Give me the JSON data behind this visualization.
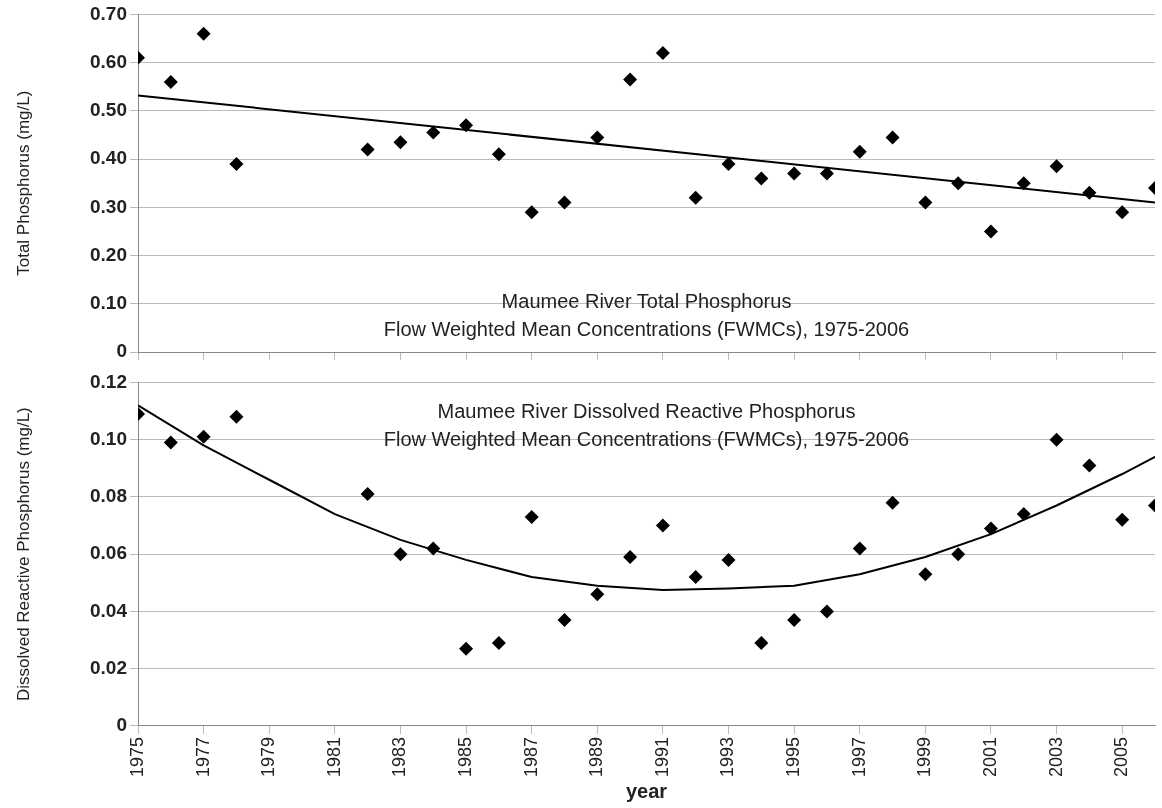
{
  "chart_data": [
    {
      "type": "scatter",
      "ylabel": "Total Phosphorus (mg/L)",
      "annotations": [
        "Maumee River Total Phosphorus",
        "Flow Weighted Mean Concentrations (FWMCs), 1975-2006"
      ],
      "xlim": [
        1975,
        2006
      ],
      "xticks": [
        1975,
        1977,
        1979,
        1981,
        1983,
        1985,
        1987,
        1989,
        1991,
        1993,
        1995,
        1997,
        1999,
        2001,
        2003,
        2005
      ],
      "ylim": [
        0,
        0.7
      ],
      "yticks": [
        {
          "value": 0,
          "label": "0"
        },
        {
          "value": 0.1,
          "label": "0.10"
        },
        {
          "value": 0.2,
          "label": "0.20"
        },
        {
          "value": 0.3,
          "label": "0.30"
        },
        {
          "value": 0.4,
          "label": "0.40"
        },
        {
          "value": 0.5,
          "label": "0.50"
        },
        {
          "value": 0.6,
          "label": "0.60"
        },
        {
          "value": 0.7,
          "label": "0.70"
        }
      ],
      "tick_labels": "y",
      "grid": "y",
      "legend": false,
      "series": [
        {
          "type": "scatter",
          "marker": "diamond",
          "color": "#000000",
          "x": [
            1975,
            1976,
            1977,
            1978,
            1982,
            1983,
            1984,
            1985,
            1986,
            1987,
            1988,
            1989,
            1990,
            1991,
            1992,
            1993,
            1994,
            1995,
            1996,
            1997,
            1998,
            1999,
            2000,
            2001,
            2002,
            2003,
            2004,
            2005,
            2006
          ],
          "values": [
            0.61,
            0.56,
            0.66,
            0.39,
            0.42,
            0.435,
            0.455,
            0.47,
            0.41,
            0.29,
            0.31,
            0.445,
            0.565,
            0.62,
            0.32,
            0.39,
            0.36,
            0.37,
            0.37,
            0.415,
            0.445,
            0.31,
            0.35,
            0.25,
            0.35,
            0.385,
            0.33,
            0.29,
            0.34
          ]
        },
        {
          "type": "line",
          "color": "#000000",
          "x": [
            1975,
            2006
          ],
          "values": [
            0.532,
            0.31
          ]
        }
      ]
    },
    {
      "type": "scatter",
      "ylabel": "Dissolved Reactive Phosphorus (mg/L)",
      "xlabel": "year",
      "annotations": [
        "Maumee River Dissolved Reactive Phosphorus",
        "Flow Weighted Mean Concentrations (FWMCs), 1975-2006"
      ],
      "xlim": [
        1975,
        2006
      ],
      "xticks": [
        1975,
        1977,
        1979,
        1981,
        1983,
        1985,
        1987,
        1989,
        1991,
        1993,
        1995,
        1997,
        1999,
        2001,
        2003,
        2005
      ],
      "ylim": [
        0,
        0.12
      ],
      "yticks": [
        {
          "value": 0,
          "label": "0"
        },
        {
          "value": 0.02,
          "label": "0.02"
        },
        {
          "value": 0.04,
          "label": "0.04"
        },
        {
          "value": 0.06,
          "label": "0.06"
        },
        {
          "value": 0.08,
          "label": "0.08"
        },
        {
          "value": 0.1,
          "label": "0.10"
        },
        {
          "value": 0.12,
          "label": "0.12"
        }
      ],
      "grid": "y",
      "legend": false,
      "series": [
        {
          "type": "scatter",
          "marker": "diamond",
          "color": "#000000",
          "x": [
            1975,
            1976,
            1977,
            1978,
            1982,
            1983,
            1984,
            1985,
            1986,
            1987,
            1988,
            1989,
            1990,
            1991,
            1992,
            1993,
            1994,
            1995,
            1996,
            1997,
            1998,
            1999,
            2000,
            2001,
            2002,
            2003,
            2004,
            2005,
            2006
          ],
          "values": [
            0.109,
            0.099,
            0.101,
            0.108,
            0.081,
            0.06,
            0.062,
            0.027,
            0.029,
            0.073,
            0.037,
            0.046,
            0.059,
            0.07,
            0.052,
            0.058,
            0.029,
            0.037,
            0.04,
            0.062,
            0.078,
            0.053,
            0.06,
            0.069,
            0.074,
            0.1,
            0.091,
            0.072,
            0.077
          ]
        },
        {
          "type": "line",
          "color": "#000000",
          "x": [
            1975,
            1977,
            1979,
            1981,
            1983,
            1985,
            1987,
            1989,
            1991,
            1993,
            1995,
            1997,
            1999,
            2001,
            2003,
            2005,
            2006
          ],
          "values": [
            0.112,
            0.098,
            0.086,
            0.074,
            0.065,
            0.058,
            0.052,
            0.049,
            0.0475,
            0.048,
            0.049,
            0.053,
            0.059,
            0.067,
            0.077,
            0.088,
            0.094
          ]
        }
      ]
    }
  ]
}
